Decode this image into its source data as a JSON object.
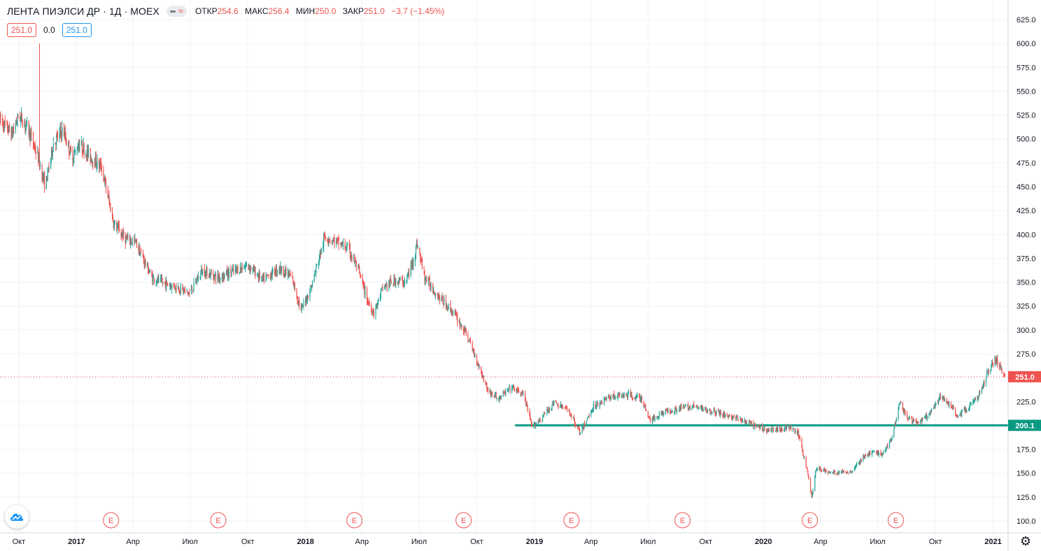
{
  "header": {
    "symbol": "ЛЕНТА ПИЭЛСИ ДР · 1Д · MOEX",
    "open_label": "ОТКР",
    "open": "254.6",
    "high_label": "МАКС",
    "high": "256.4",
    "low_label": "МИН",
    "low": "250.0",
    "close_label": "ЗАКР",
    "close": "251.0",
    "change": "−3.7 (−1.45%)"
  },
  "boxes": {
    "sell": "251.0",
    "spread": "0.0",
    "buy": "251.0"
  },
  "icons": {
    "logo": "tradingview-cloud-icon",
    "settings": "gear-icon",
    "compare": "approx-icon"
  },
  "colors": {
    "up": "#26a69a",
    "down": "#ef5350",
    "level": "#089981",
    "grid": "#f0f3fa",
    "axis_text": "#131722"
  },
  "chart_data": {
    "type": "candlestick",
    "ylim": [
      90,
      630
    ],
    "y_ticks": [
      100,
      125,
      150,
      175,
      200,
      225,
      250,
      275,
      300,
      325,
      350,
      375,
      400,
      425,
      450,
      475,
      500,
      525,
      550,
      575,
      600,
      625
    ],
    "xlim": [
      "2016-09-01",
      "2021-01-25"
    ],
    "x_ticks": [
      {
        "label": "Окт",
        "date": "2016-10-01"
      },
      {
        "label": "2017",
        "date": "2017-01-01"
      },
      {
        "label": "Апр",
        "date": "2017-04-01"
      },
      {
        "label": "Июл",
        "date": "2017-07-01"
      },
      {
        "label": "Окт",
        "date": "2017-10-01"
      },
      {
        "label": "2018",
        "date": "2018-01-01"
      },
      {
        "label": "Апр",
        "date": "2018-04-01"
      },
      {
        "label": "Июл",
        "date": "2018-07-01"
      },
      {
        "label": "Окт",
        "date": "2018-10-01"
      },
      {
        "label": "2019",
        "date": "2019-01-01"
      },
      {
        "label": "Апр",
        "date": "2019-04-01"
      },
      {
        "label": "Июл",
        "date": "2019-07-01"
      },
      {
        "label": "Окт",
        "date": "2019-10-01"
      },
      {
        "label": "2020",
        "date": "2020-01-01"
      },
      {
        "label": "Апр",
        "date": "2020-04-01"
      },
      {
        "label": "Июл",
        "date": "2020-07-01"
      },
      {
        "label": "Окт",
        "date": "2020-10-01"
      },
      {
        "label": "2021",
        "date": "2021-01-01"
      }
    ],
    "price_path": [
      [
        "2016-09-01",
        520
      ],
      [
        "2016-09-20",
        505
      ],
      [
        "2016-10-01",
        525
      ],
      [
        "2016-10-15",
        512
      ],
      [
        "2016-11-01",
        480
      ],
      [
        "2016-11-12",
        450
      ],
      [
        "2016-11-25",
        495
      ],
      [
        "2016-12-10",
        510
      ],
      [
        "2016-12-25",
        480
      ],
      [
        "2017-01-05",
        495
      ],
      [
        "2017-01-25",
        480
      ],
      [
        "2017-02-10",
        470
      ],
      [
        "2017-02-20",
        440
      ],
      [
        "2017-03-01",
        412
      ],
      [
        "2017-03-20",
        395
      ],
      [
        "2017-04-05",
        392
      ],
      [
        "2017-05-01",
        355
      ],
      [
        "2017-05-15",
        350
      ],
      [
        "2017-06-10",
        345
      ],
      [
        "2017-06-30",
        338
      ],
      [
        "2017-07-20",
        362
      ],
      [
        "2017-08-15",
        355
      ],
      [
        "2017-09-10",
        362
      ],
      [
        "2017-10-01",
        368
      ],
      [
        "2017-10-25",
        352
      ],
      [
        "2017-11-20",
        365
      ],
      [
        "2017-12-10",
        355
      ],
      [
        "2017-12-25",
        320
      ],
      [
        "2018-01-10",
        345
      ],
      [
        "2018-02-01",
        398
      ],
      [
        "2018-02-20",
        392
      ],
      [
        "2018-03-10",
        385
      ],
      [
        "2018-03-25",
        365
      ],
      [
        "2018-04-10",
        330
      ],
      [
        "2018-04-20",
        318
      ],
      [
        "2018-05-05",
        345
      ],
      [
        "2018-05-25",
        352
      ],
      [
        "2018-06-10",
        350
      ],
      [
        "2018-06-20",
        370
      ],
      [
        "2018-06-28",
        390
      ],
      [
        "2018-07-10",
        355
      ],
      [
        "2018-08-01",
        335
      ],
      [
        "2018-08-25",
        318
      ],
      [
        "2018-09-15",
        295
      ],
      [
        "2018-10-01",
        268
      ],
      [
        "2018-10-20",
        235
      ],
      [
        "2018-11-05",
        228
      ],
      [
        "2018-11-25",
        240
      ],
      [
        "2018-12-15",
        232
      ],
      [
        "2018-12-28",
        198
      ],
      [
        "2019-01-15",
        210
      ],
      [
        "2019-02-01",
        224
      ],
      [
        "2019-02-25",
        215
      ],
      [
        "2019-03-15",
        192
      ],
      [
        "2019-04-05",
        220
      ],
      [
        "2019-05-01",
        230
      ],
      [
        "2019-06-01",
        232
      ],
      [
        "2019-06-20",
        228
      ],
      [
        "2019-07-05",
        205
      ],
      [
        "2019-07-25",
        214
      ],
      [
        "2019-08-20",
        218
      ],
      [
        "2019-09-10",
        220
      ],
      [
        "2019-10-05",
        216
      ],
      [
        "2019-11-01",
        211
      ],
      [
        "2019-11-25",
        206
      ],
      [
        "2019-12-15",
        200
      ],
      [
        "2020-01-10",
        195
      ],
      [
        "2020-02-10",
        198
      ],
      [
        "2020-02-25",
        192
      ],
      [
        "2020-03-10",
        155
      ],
      [
        "2020-03-18",
        125
      ],
      [
        "2020-03-25",
        155
      ],
      [
        "2020-04-20",
        150
      ],
      [
        "2020-05-20",
        152
      ],
      [
        "2020-06-10",
        168
      ],
      [
        "2020-06-25",
        172
      ],
      [
        "2020-07-10",
        170
      ],
      [
        "2020-07-25",
        190
      ],
      [
        "2020-08-05",
        225
      ],
      [
        "2020-08-15",
        210
      ],
      [
        "2020-09-01",
        202
      ],
      [
        "2020-09-20",
        210
      ],
      [
        "2020-10-10",
        230
      ],
      [
        "2020-10-25",
        222
      ],
      [
        "2020-11-05",
        210
      ],
      [
        "2020-11-25",
        220
      ],
      [
        "2020-12-10",
        232
      ],
      [
        "2020-12-25",
        258
      ],
      [
        "2021-01-05",
        270
      ],
      [
        "2021-01-20",
        251
      ]
    ],
    "spikes": [
      {
        "date": "2016-11-03",
        "high": 600
      },
      {
        "date": "2018-03-18",
        "low": 288
      },
      {
        "date": "2020-07-12",
        "low": 137
      }
    ],
    "last_price": 251.0,
    "last_price_label": "251.0",
    "horizontal_level": {
      "value": 200.1,
      "label": "200.1",
      "from": "2018-12-01"
    },
    "earnings_markers": {
      "label": "E",
      "dates": [
        "2017-02-25",
        "2017-08-15",
        "2018-03-20",
        "2018-09-10",
        "2019-03-01",
        "2019-08-25",
        "2020-03-15",
        "2020-07-30"
      ]
    }
  }
}
